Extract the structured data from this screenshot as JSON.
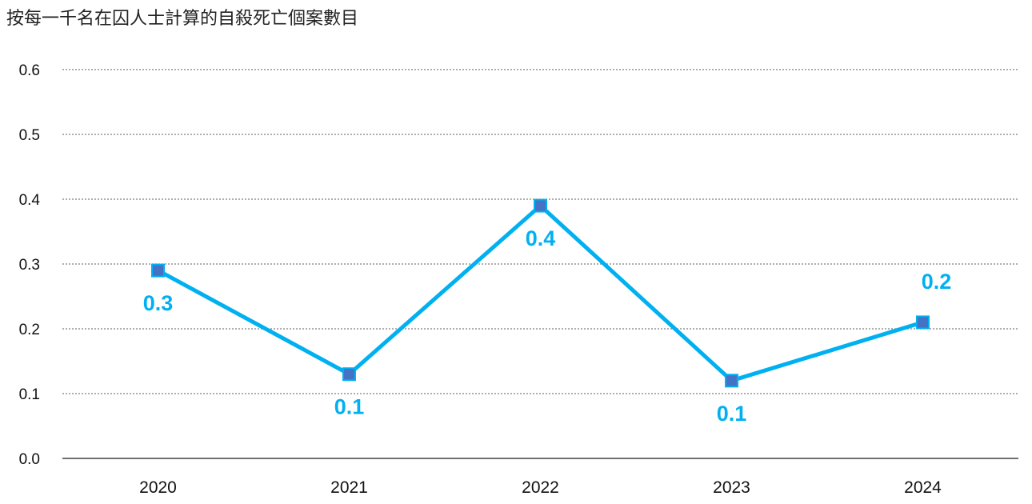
{
  "chart_data": {
    "type": "line",
    "title": "按每一千名在囚人士計算的自殺死亡個案數目",
    "xlabel": "",
    "ylabel": "",
    "categories": [
      "2020",
      "2021",
      "2022",
      "2023",
      "2024"
    ],
    "series": [
      {
        "values": [
          0.29,
          0.13,
          0.39,
          0.12,
          0.21
        ],
        "data_labels": [
          "0.3",
          "0.1",
          "0.4",
          "0.1",
          "0.2"
        ]
      }
    ],
    "ylim": [
      0,
      0.6
    ],
    "yticks": [
      "0.0",
      "0.1",
      "0.2",
      "0.3",
      "0.4",
      "0.5",
      "0.6"
    ],
    "grid": true,
    "grid_style": "dotted",
    "legend": "none",
    "colors": {
      "line": "#00B0F0",
      "marker_fill": "#4472C4",
      "data_label": "#00B0F0",
      "grid": "#7F7F7F",
      "axis": "#404040"
    }
  }
}
